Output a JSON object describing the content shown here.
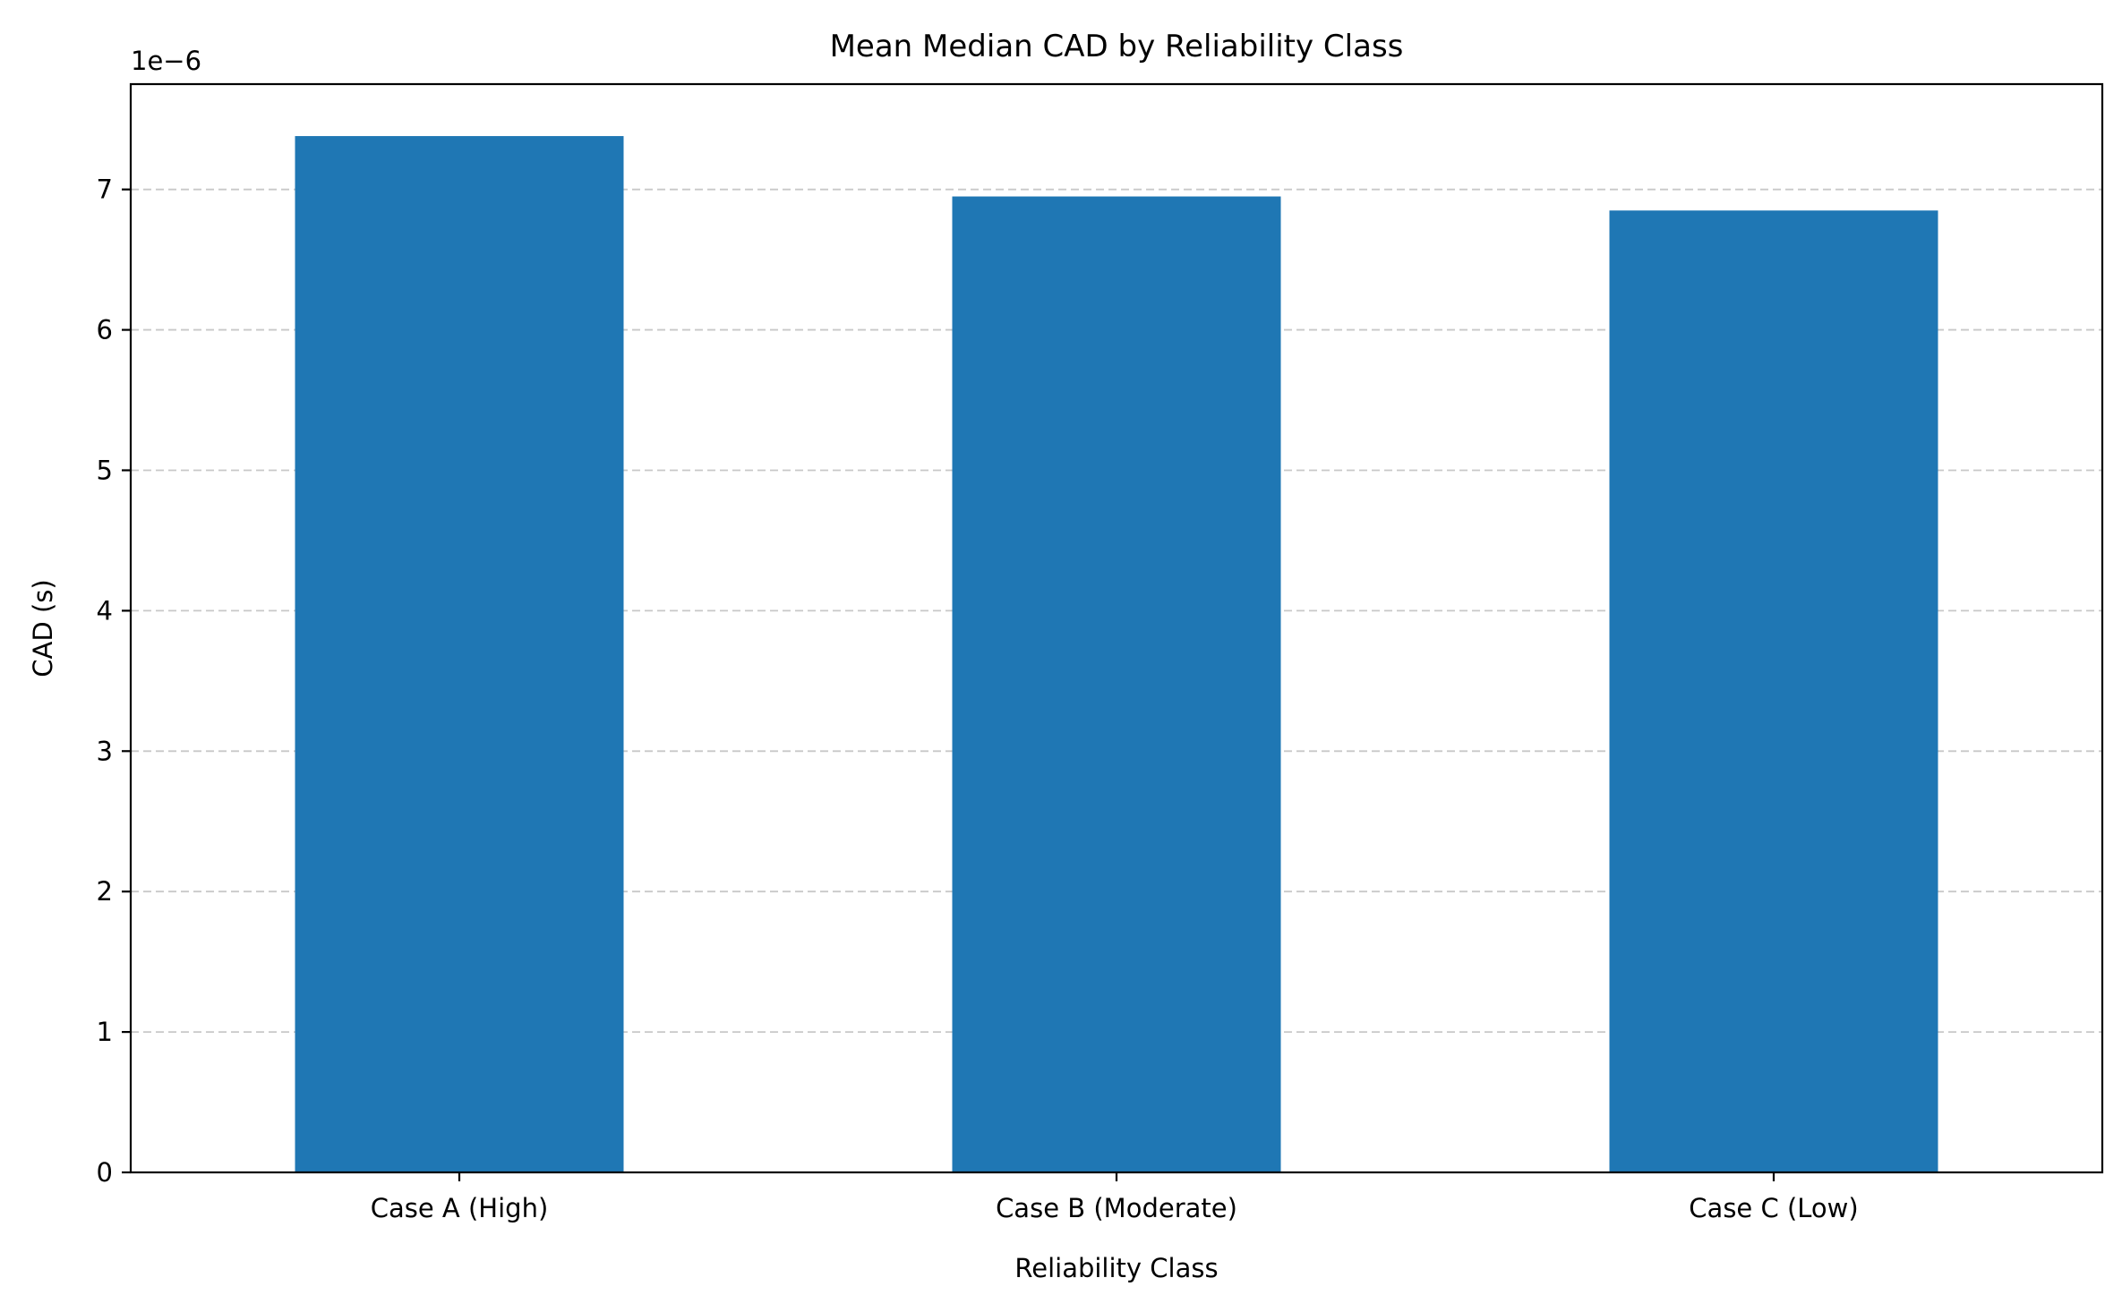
{
  "chart_data": {
    "type": "bar",
    "title": "Mean Median CAD by Reliability Class",
    "xlabel": "Reliability Class",
    "ylabel": "CAD (s)",
    "y_offset_label": "1e−6",
    "categories": [
      "Case A (High)",
      "Case B (Moderate)",
      "Case C (Low)"
    ],
    "values": [
      7.38,
      6.95,
      6.85
    ],
    "value_multiplier": 1e-06,
    "ylim": [
      0,
      7.75
    ],
    "yticks": [
      0,
      1,
      2,
      3,
      4,
      5,
      6,
      7
    ],
    "grid": "y-dashed",
    "bar_color": "#1f77b4",
    "legend": "none"
  }
}
